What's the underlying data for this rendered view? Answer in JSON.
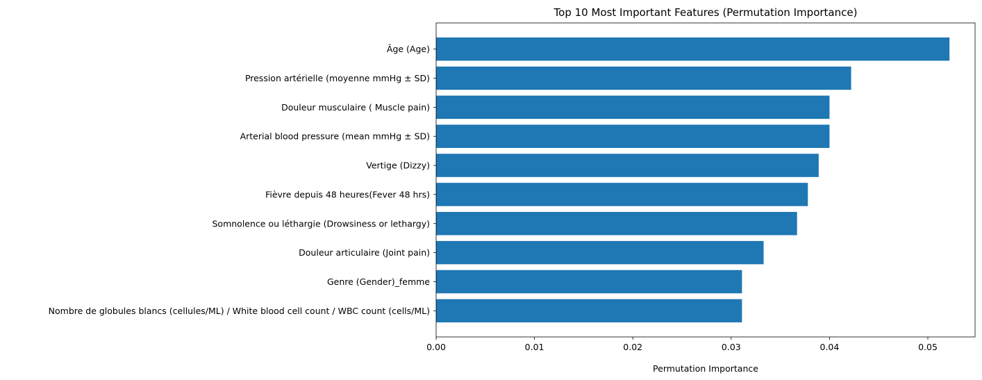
{
  "chart_data": {
    "type": "bar",
    "orientation": "horizontal",
    "title": "Top 10 Most Important Features (Permutation Importance)",
    "xlabel": "Permutation Importance",
    "ylabel": "",
    "xlim": [
      0,
      0.0548
    ],
    "xticks": [
      0.0,
      0.01,
      0.02,
      0.03,
      0.04,
      0.05
    ],
    "xtick_labels": [
      "0.00",
      "0.01",
      "0.02",
      "0.03",
      "0.04",
      "0.05"
    ],
    "grid": false,
    "bar_color": "#1f77b4",
    "categories": [
      "Âge (Age)",
      "Pression artérielle (moyenne mmHg ± SD)",
      "Douleur musculaire ( Muscle pain)",
      "Arterial blood pressure (mean mmHg ± SD)",
      "Vertige (Dizzy)",
      "Fièvre depuis 48 heures(Fever 48 hrs)",
      "Somnolence ou léthargie  (Drowsiness or lethargy)",
      "Douleur articulaire (Joint pain)",
      "Genre (Gender)_femme",
      "Nombre de globules blancs (cellules/ML) / White blood cell count / WBC count (cells/ML)"
    ],
    "values": [
      0.0522,
      0.0422,
      0.04,
      0.04,
      0.0389,
      0.0378,
      0.0367,
      0.0333,
      0.0311,
      0.0311
    ]
  }
}
